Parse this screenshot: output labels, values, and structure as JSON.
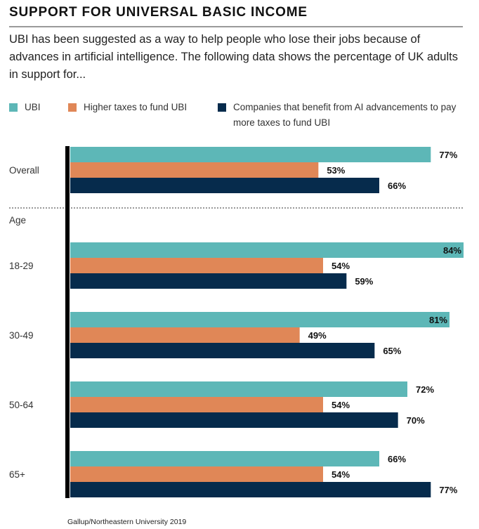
{
  "title": "SUPPORT FOR UNIVERSAL BASIC INCOME",
  "intro": "UBI has been suggested as a way to help people who lose their jobs because of advances in artificial intelligence. The following data shows the percentage of UK adults in support for...",
  "source": "Gallup/Northeastern University 2019",
  "colors": {
    "ubi": "#5db7b7",
    "higher_taxes": "#e08757",
    "companies": "#062b4c",
    "axis": "#000000",
    "label_text": "#111111"
  },
  "chart_data": {
    "type": "bar",
    "orientation": "horizontal",
    "title": "SUPPORT FOR UNIVERSAL BASIC INCOME",
    "xlabel": "",
    "ylabel": "",
    "xlim": [
      0,
      84
    ],
    "grid": false,
    "legend_position": "top",
    "value_suffix": "%",
    "section_labels": [
      {
        "label": "Age",
        "before_category": "18-29"
      }
    ],
    "categories": [
      "Overall",
      "18-29",
      "30-49",
      "50-64",
      "65+"
    ],
    "series": [
      {
        "name": "UBI",
        "color_key": "ubi",
        "values": [
          77,
          84,
          81,
          72,
          66
        ]
      },
      {
        "name": "Higher taxes to fund UBI",
        "color_key": "higher_taxes",
        "values": [
          53,
          54,
          49,
          54,
          54
        ]
      },
      {
        "name": "Companies that benefit from AI advancements to pay more taxes to fund UBI",
        "color_key": "companies",
        "values": [
          66,
          59,
          65,
          70,
          77
        ]
      }
    ]
  }
}
